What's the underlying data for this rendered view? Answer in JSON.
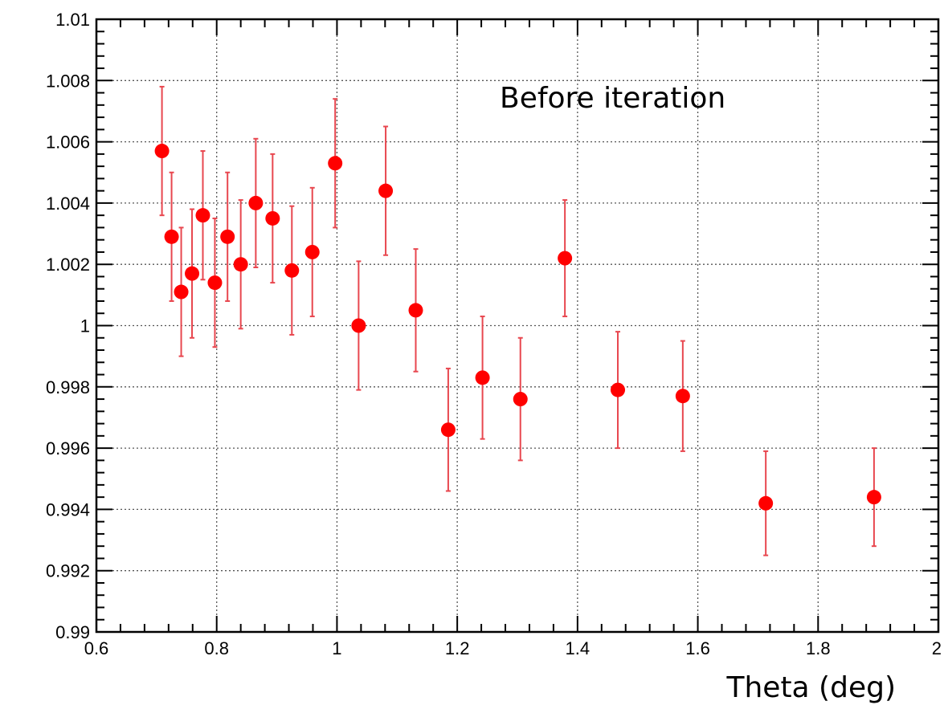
{
  "chart_data": {
    "type": "scatter",
    "title": "",
    "annotation": "Before iteration",
    "xlabel": "Theta (deg)",
    "ylabel": "",
    "xlim": [
      0.6,
      2.0
    ],
    "ylim": [
      0.99,
      1.01
    ],
    "grid": true,
    "x_ticks": [
      0.6,
      0.8,
      1.0,
      1.2,
      1.4,
      1.6,
      1.8,
      2.0
    ],
    "x_tick_labels": [
      "0.6",
      "0.8",
      "1",
      "1.2",
      "1.4",
      "1.6",
      "1.8",
      "2"
    ],
    "y_ticks": [
      0.99,
      0.992,
      0.994,
      0.996,
      0.998,
      1.0,
      1.002,
      1.004,
      1.006,
      1.008,
      1.01
    ],
    "y_tick_labels": [
      "0.99",
      "0.992",
      "0.994",
      "0.996",
      "0.998",
      "1",
      "1.002",
      "1.004",
      "1.006",
      "1.008",
      "1.01"
    ],
    "marker_color": "#ff0000",
    "errorbar_color": "#e8474f",
    "series": [
      {
        "points": [
          {
            "x": 0.709,
            "y": 1.0057,
            "err": 0.0021
          },
          {
            "x": 0.725,
            "y": 1.0029,
            "err": 0.0021
          },
          {
            "x": 0.741,
            "y": 1.0011,
            "err": 0.0021
          },
          {
            "x": 0.759,
            "y": 1.0017,
            "err": 0.0021
          },
          {
            "x": 0.777,
            "y": 1.0036,
            "err": 0.0021
          },
          {
            "x": 0.797,
            "y": 1.0014,
            "err": 0.0021
          },
          {
            "x": 0.818,
            "y": 1.0029,
            "err": 0.0021
          },
          {
            "x": 0.84,
            "y": 1.002,
            "err": 0.0021
          },
          {
            "x": 0.865,
            "y": 1.004,
            "err": 0.0021
          },
          {
            "x": 0.893,
            "y": 1.0035,
            "err": 0.0021
          },
          {
            "x": 0.925,
            "y": 1.0018,
            "err": 0.0021
          },
          {
            "x": 0.959,
            "y": 1.0024,
            "err": 0.0021
          },
          {
            "x": 0.997,
            "y": 1.0053,
            "err": 0.0021
          },
          {
            "x": 1.036,
            "y": 1.0,
            "err": 0.0021
          },
          {
            "x": 1.081,
            "y": 1.0044,
            "err": 0.0021
          },
          {
            "x": 1.131,
            "y": 1.0005,
            "err": 0.002
          },
          {
            "x": 1.185,
            "y": 0.9966,
            "err": 0.002
          },
          {
            "x": 1.242,
            "y": 0.9983,
            "err": 0.002
          },
          {
            "x": 1.305,
            "y": 0.9976,
            "err": 0.002
          },
          {
            "x": 1.379,
            "y": 1.0022,
            "err": 0.0019
          },
          {
            "x": 1.467,
            "y": 0.9979,
            "err": 0.0019
          },
          {
            "x": 1.575,
            "y": 0.9977,
            "err": 0.0018
          },
          {
            "x": 1.713,
            "y": 0.9942,
            "err": 0.0017
          },
          {
            "x": 1.893,
            "y": 0.9944,
            "err": 0.0016
          }
        ]
      }
    ]
  }
}
